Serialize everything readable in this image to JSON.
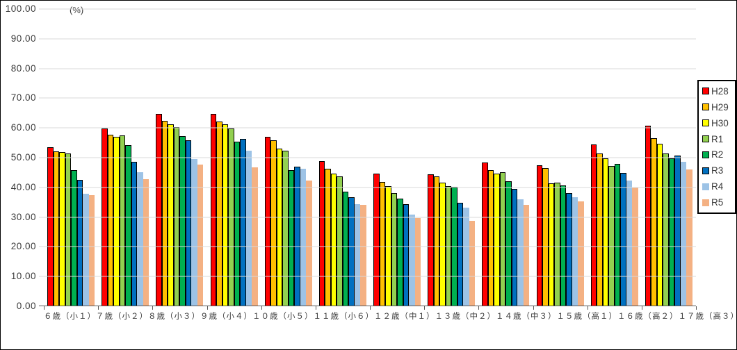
{
  "chart_data": {
    "type": "bar",
    "title": "",
    "unit_label": "(%)",
    "xlabel": "",
    "ylabel": "",
    "ylim": [
      0,
      100
    ],
    "y_tick_step": 10,
    "y_tick_labels": [
      "100.00",
      "90.00",
      "80.00",
      "70.00",
      "60.00",
      "50.00",
      "40.00",
      "30.00",
      "20.00",
      "10.00",
      "0.00"
    ],
    "grid": true,
    "legend_position": "right",
    "categories": [
      "６歳（小１）",
      "７歳（小２）",
      "８歳（小３）",
      "９歳（小４）",
      "１０歳（小５）",
      "１１歳（小６）",
      "１２歳（中１）",
      "１３歳（中２）",
      "１４歳（中３）",
      "１５歳（高１）",
      "１６歳（高２）",
      "１７歳（高３）"
    ],
    "series": [
      {
        "name": "H28",
        "color": "#FF0000",
        "outlined": true,
        "values": [
          53.5,
          59.7,
          64.7,
          64.7,
          57.0,
          48.8,
          44.6,
          44.4,
          48.4,
          47.4,
          54.5,
          60.7
        ]
      },
      {
        "name": "H29",
        "color": "#FFC000",
        "outlined": true,
        "values": [
          52.2,
          57.7,
          62.5,
          62.1,
          55.9,
          46.2,
          41.9,
          43.8,
          45.9,
          46.6,
          51.3,
          56.6
        ]
      },
      {
        "name": "H30",
        "color": "#FFFF00",
        "outlined": true,
        "values": [
          51.9,
          57.1,
          61.2,
          61.3,
          53.0,
          44.6,
          40.4,
          41.7,
          44.6,
          41.4,
          49.8,
          54.6
        ]
      },
      {
        "name": "R1",
        "color": "#92D050",
        "outlined": true,
        "values": [
          51.4,
          57.5,
          60.4,
          59.9,
          52.3,
          43.6,
          38.2,
          40.4,
          45.0,
          41.7,
          47.3,
          51.3
        ]
      },
      {
        "name": "R2",
        "color": "#00B050",
        "outlined": true,
        "values": [
          45.7,
          54.1,
          57.2,
          55.4,
          45.9,
          38.6,
          36.2,
          40.1,
          42.1,
          40.7,
          47.9,
          49.7
        ]
      },
      {
        "name": "R3",
        "color": "#0070C0",
        "outlined": true,
        "values": [
          42.5,
          48.7,
          55.9,
          56.2,
          46.9,
          36.8,
          34.4,
          34.8,
          39.6,
          38.2,
          44.9,
          50.6
        ]
      },
      {
        "name": "R4",
        "color": "#9DC3E6",
        "outlined": false,
        "values": [
          37.8,
          45.2,
          49.6,
          52.3,
          46.2,
          34.3,
          30.8,
          33.1,
          36.0,
          36.8,
          42.2,
          48.7
        ]
      },
      {
        "name": "R5",
        "color": "#F4B183",
        "outlined": false,
        "values": [
          37.5,
          42.8,
          47.6,
          46.8,
          42.4,
          34.0,
          29.6,
          28.8,
          34.1,
          35.4,
          39.9,
          46.0
        ]
      }
    ]
  }
}
